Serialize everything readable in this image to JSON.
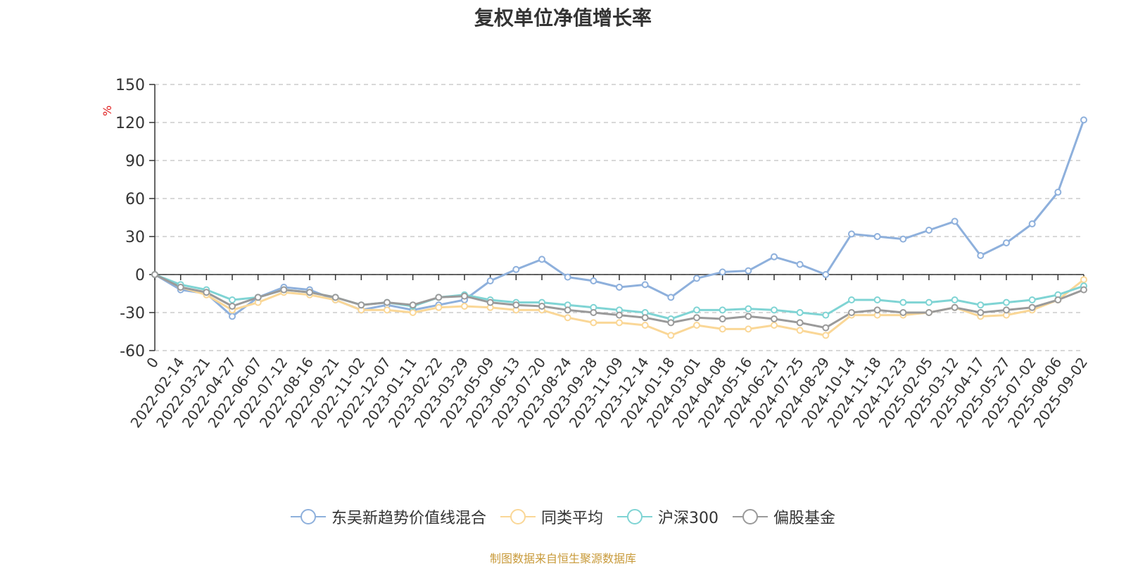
{
  "chart_data": {
    "type": "line",
    "title": "复权单位净值增长率",
    "ylabel": "%",
    "ylim": [
      -60,
      150
    ],
    "yticks": [
      -60,
      -30,
      0,
      30,
      60,
      90,
      120,
      150
    ],
    "grid": true,
    "legend_position": "bottom",
    "categories": [
      "0",
      "2022-02-14",
      "2022-03-21",
      "2022-04-27",
      "2022-06-07",
      "2022-07-12",
      "2022-08-16",
      "2022-09-21",
      "2022-11-02",
      "2022-12-07",
      "2023-01-11",
      "2023-02-22",
      "2023-03-29",
      "2023-05-09",
      "2023-06-13",
      "2023-07-20",
      "2023-08-24",
      "2023-09-28",
      "2023-11-09",
      "2023-12-14",
      "2024-01-18",
      "2024-03-01",
      "2024-04-08",
      "2024-05-16",
      "2024-06-21",
      "2024-07-25",
      "2024-08-29",
      "2024-10-14",
      "2024-11-18",
      "2024-12-23",
      "2025-02-05",
      "2025-03-12",
      "2025-04-17",
      "2025-05-27",
      "2025-07-02",
      "2025-08-06",
      "2025-09-02"
    ],
    "series": [
      {
        "name": "东吴新趋势价值线混合",
        "color": "#8eb0dc",
        "values": [
          0,
          -12,
          -15,
          -33,
          -18,
          -10,
          -12,
          -20,
          -28,
          -24,
          -28,
          -24,
          -20,
          -5,
          4,
          12,
          -2,
          -5,
          -10,
          -8,
          -18,
          -3,
          2,
          3,
          14,
          8,
          0,
          32,
          30,
          28,
          35,
          42,
          15,
          25,
          40,
          65,
          122
        ]
      },
      {
        "name": "同类平均",
        "color": "#fad797",
        "values": [
          0,
          -10,
          -16,
          -28,
          -22,
          -14,
          -16,
          -20,
          -28,
          -28,
          -30,
          -26,
          -25,
          -26,
          -28,
          -28,
          -34,
          -38,
          -38,
          -40,
          -48,
          -40,
          -43,
          -43,
          -40,
          -44,
          -48,
          -32,
          -32,
          -32,
          -30,
          -26,
          -33,
          -32,
          -28,
          -20,
          -4
        ]
      },
      {
        "name": "沪深300",
        "color": "#7fd4d4",
        "values": [
          0,
          -8,
          -12,
          -20,
          -18,
          -12,
          -14,
          -18,
          -24,
          -22,
          -25,
          -18,
          -16,
          -20,
          -22,
          -22,
          -24,
          -26,
          -28,
          -30,
          -35,
          -28,
          -28,
          -27,
          -28,
          -30,
          -32,
          -20,
          -20,
          -22,
          -22,
          -20,
          -24,
          -22,
          -20,
          -16,
          -9
        ]
      },
      {
        "name": "偏股基金",
        "color": "#9a9a9a",
        "values": [
          0,
          -10,
          -14,
          -25,
          -18,
          -12,
          -14,
          -18,
          -24,
          -22,
          -24,
          -18,
          -17,
          -22,
          -24,
          -25,
          -28,
          -30,
          -32,
          -34,
          -38,
          -34,
          -35,
          -33,
          -35,
          -38,
          -42,
          -30,
          -28,
          -30,
          -30,
          -26,
          -30,
          -28,
          -26,
          -20,
          -12
        ]
      }
    ]
  },
  "source_note": "制图数据来自恒生聚源数据库"
}
